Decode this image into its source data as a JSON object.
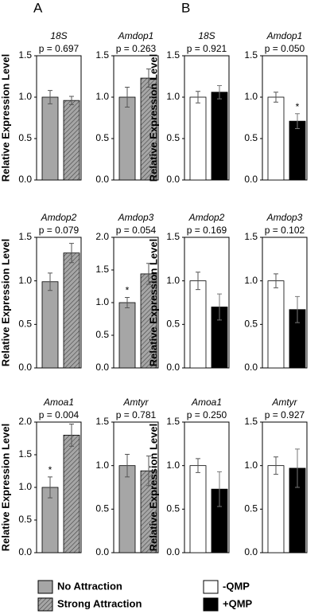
{
  "panel_labels": [
    "A",
    "B"
  ],
  "legend": {
    "A": [
      {
        "name": "No Attraction",
        "color": "#a6a6a6",
        "hatch": false
      },
      {
        "name": "Strong Attraction",
        "color": "#a6a6a6",
        "hatch": true
      }
    ],
    "B": [
      {
        "name": "-QMP",
        "color": "#ffffff",
        "hatch": false
      },
      {
        "name": "+QMP",
        "color": "#000000",
        "hatch": false
      }
    ]
  },
  "chart_data": [
    {
      "type": "bar",
      "title": "18S",
      "subtitle": "p = 0.697",
      "ylabel": "Relative Expression Level",
      "values": [
        1.0,
        0.96
      ],
      "errors": [
        0.08,
        0.05
      ],
      "colors": [
        "#a6a6a6",
        "#a6a6a6"
      ],
      "hatch": [
        false,
        true
      ],
      "annotations": [
        null,
        null
      ],
      "ylim": [
        0,
        1.5
      ],
      "yticks": [
        {
          "value": 0,
          "label": "0.0"
        },
        0.5,
        {
          "value": 1,
          "label": "1.0"
        },
        1.5
      ]
    },
    {
      "type": "bar",
      "title": "Amdop1",
      "subtitle": "p = 0.263",
      "values": [
        1.0,
        1.23
      ],
      "errors": [
        0.12,
        0.11
      ],
      "colors": [
        "#a6a6a6",
        "#a6a6a6"
      ],
      "hatch": [
        false,
        true
      ],
      "annotations": [
        null,
        null
      ],
      "ylim": [
        0,
        1.5
      ],
      "yticks": [
        {
          "value": 0,
          "label": "0.0"
        },
        0.5,
        {
          "value": 1,
          "label": "1.0"
        },
        1.5
      ]
    },
    {
      "type": "bar",
      "title": "18S",
      "subtitle": "p = 0.921",
      "ylabel": "Relative Expression Level",
      "values": [
        1.0,
        1.06
      ],
      "errors": [
        0.07,
        0.08
      ],
      "colors": [
        "#ffffff",
        "#000000"
      ],
      "hatch": [
        false,
        false
      ],
      "annotations": [
        null,
        null
      ],
      "ylim": [
        0,
        1.5
      ],
      "yticks": [
        {
          "value": 0,
          "label": "0.0"
        },
        0.5,
        {
          "value": 1,
          "label": "1.0"
        },
        1.5
      ]
    },
    {
      "type": "bar",
      "title": "Amdop1",
      "subtitle": "p = 0.050",
      "values": [
        1.0,
        0.71
      ],
      "errors": [
        0.06,
        0.09
      ],
      "colors": [
        "#ffffff",
        "#000000"
      ],
      "hatch": [
        false,
        false
      ],
      "annotations": [
        null,
        "*"
      ],
      "ylim": [
        0,
        1.5
      ],
      "yticks": [
        {
          "value": 0,
          "label": "0.0"
        },
        0.5,
        {
          "value": 1,
          "label": "1.0"
        },
        1.5
      ]
    },
    {
      "type": "bar",
      "title": "Amdop2",
      "subtitle": "p = 0.079",
      "ylabel": "Relative Expression Level",
      "values": [
        0.99,
        1.32
      ],
      "errors": [
        0.1,
        0.11
      ],
      "colors": [
        "#a6a6a6",
        "#a6a6a6"
      ],
      "hatch": [
        false,
        true
      ],
      "annotations": [
        null,
        null
      ],
      "ylim": [
        0,
        1.5
      ],
      "yticks": [
        {
          "value": 0,
          "label": "0.0"
        },
        0.5,
        {
          "value": 1,
          "label": "1.0"
        },
        1.5
      ]
    },
    {
      "type": "bar",
      "title": "Amdop3",
      "subtitle": "p = 0.054",
      "values": [
        1.0,
        1.44
      ],
      "errors": [
        0.08,
        0.16
      ],
      "colors": [
        "#a6a6a6",
        "#a6a6a6"
      ],
      "hatch": [
        false,
        true
      ],
      "annotations": [
        "*",
        null
      ],
      "ylim": [
        0,
        2
      ],
      "yticks": [
        {
          "value": 0,
          "label": "0.0"
        },
        0.5,
        {
          "value": 1,
          "label": "1.0"
        },
        1.5,
        {
          "value": 2,
          "label": "2.0"
        }
      ]
    },
    {
      "type": "bar",
      "title": "Amdop2",
      "subtitle": "p = 0.169",
      "ylabel": "Relative Expression Level",
      "values": [
        1.0,
        0.7
      ],
      "errors": [
        0.1,
        0.15
      ],
      "colors": [
        "#ffffff",
        "#000000"
      ],
      "hatch": [
        false,
        false
      ],
      "annotations": [
        null,
        null
      ],
      "ylim": [
        0,
        1.5
      ],
      "yticks": [
        {
          "value": 0,
          "label": "0.0"
        },
        0.5,
        {
          "value": 1,
          "label": "1.0"
        },
        1.5
      ]
    },
    {
      "type": "bar",
      "title": "Amdop3",
      "subtitle": "p = 0.102",
      "values": [
        1.0,
        0.67
      ],
      "errors": [
        0.08,
        0.15
      ],
      "colors": [
        "#ffffff",
        "#000000"
      ],
      "hatch": [
        false,
        false
      ],
      "annotations": [
        null,
        null
      ],
      "ylim": [
        0,
        1.5
      ],
      "yticks": [
        {
          "value": 0,
          "label": "0.0"
        },
        0.5,
        {
          "value": 1,
          "label": "1.0"
        },
        1.5
      ]
    },
    {
      "type": "bar",
      "title": "Amoa1",
      "subtitle": "p = 0.004",
      "ylabel": "Relative Expression Level",
      "values": [
        1.0,
        1.8
      ],
      "errors": [
        0.16,
        0.17
      ],
      "colors": [
        "#a6a6a6",
        "#a6a6a6"
      ],
      "hatch": [
        false,
        true
      ],
      "annotations": [
        "*",
        null
      ],
      "ylim": [
        0,
        2
      ],
      "yticks": [
        {
          "value": 0,
          "label": "0.0"
        },
        0.5,
        {
          "value": 1,
          "label": "1.0"
        },
        1.5,
        {
          "value": 2,
          "label": "2.0"
        }
      ]
    },
    {
      "type": "bar",
      "title": "Amtyr",
      "subtitle": "p = 0.781",
      "values": [
        1.0,
        0.94
      ],
      "errors": [
        0.13,
        0.17
      ],
      "colors": [
        "#a6a6a6",
        "#a6a6a6"
      ],
      "hatch": [
        false,
        true
      ],
      "annotations": [
        null,
        null
      ],
      "ylim": [
        0,
        1.5
      ],
      "yticks": [
        {
          "value": 0,
          "label": "0.0"
        },
        0.5,
        {
          "value": 1,
          "label": "1.0"
        },
        1.5
      ]
    },
    {
      "type": "bar",
      "title": "Amoa1",
      "subtitle": "p = 0.250",
      "ylabel": "Relative Expression Level",
      "values": [
        1.0,
        0.73
      ],
      "errors": [
        0.08,
        0.2
      ],
      "colors": [
        "#ffffff",
        "#000000"
      ],
      "hatch": [
        false,
        false
      ],
      "annotations": [
        null,
        null
      ],
      "ylim": [
        0,
        1.5
      ],
      "yticks": [
        {
          "value": 0,
          "label": "0.0"
        },
        0.5,
        {
          "value": 1,
          "label": "1.0"
        },
        1.5
      ]
    },
    {
      "type": "bar",
      "title": "Amtyr",
      "subtitle": "p = 0.927",
      "values": [
        1.0,
        0.97
      ],
      "errors": [
        0.1,
        0.22
      ],
      "colors": [
        "#ffffff",
        "#000000"
      ],
      "hatch": [
        false,
        false
      ],
      "annotations": [
        null,
        null
      ],
      "ylim": [
        0,
        1.5
      ],
      "yticks": [
        {
          "value": 0,
          "label": "0.0"
        },
        0.5,
        {
          "value": 1,
          "label": "1.0"
        },
        1.5
      ]
    }
  ]
}
